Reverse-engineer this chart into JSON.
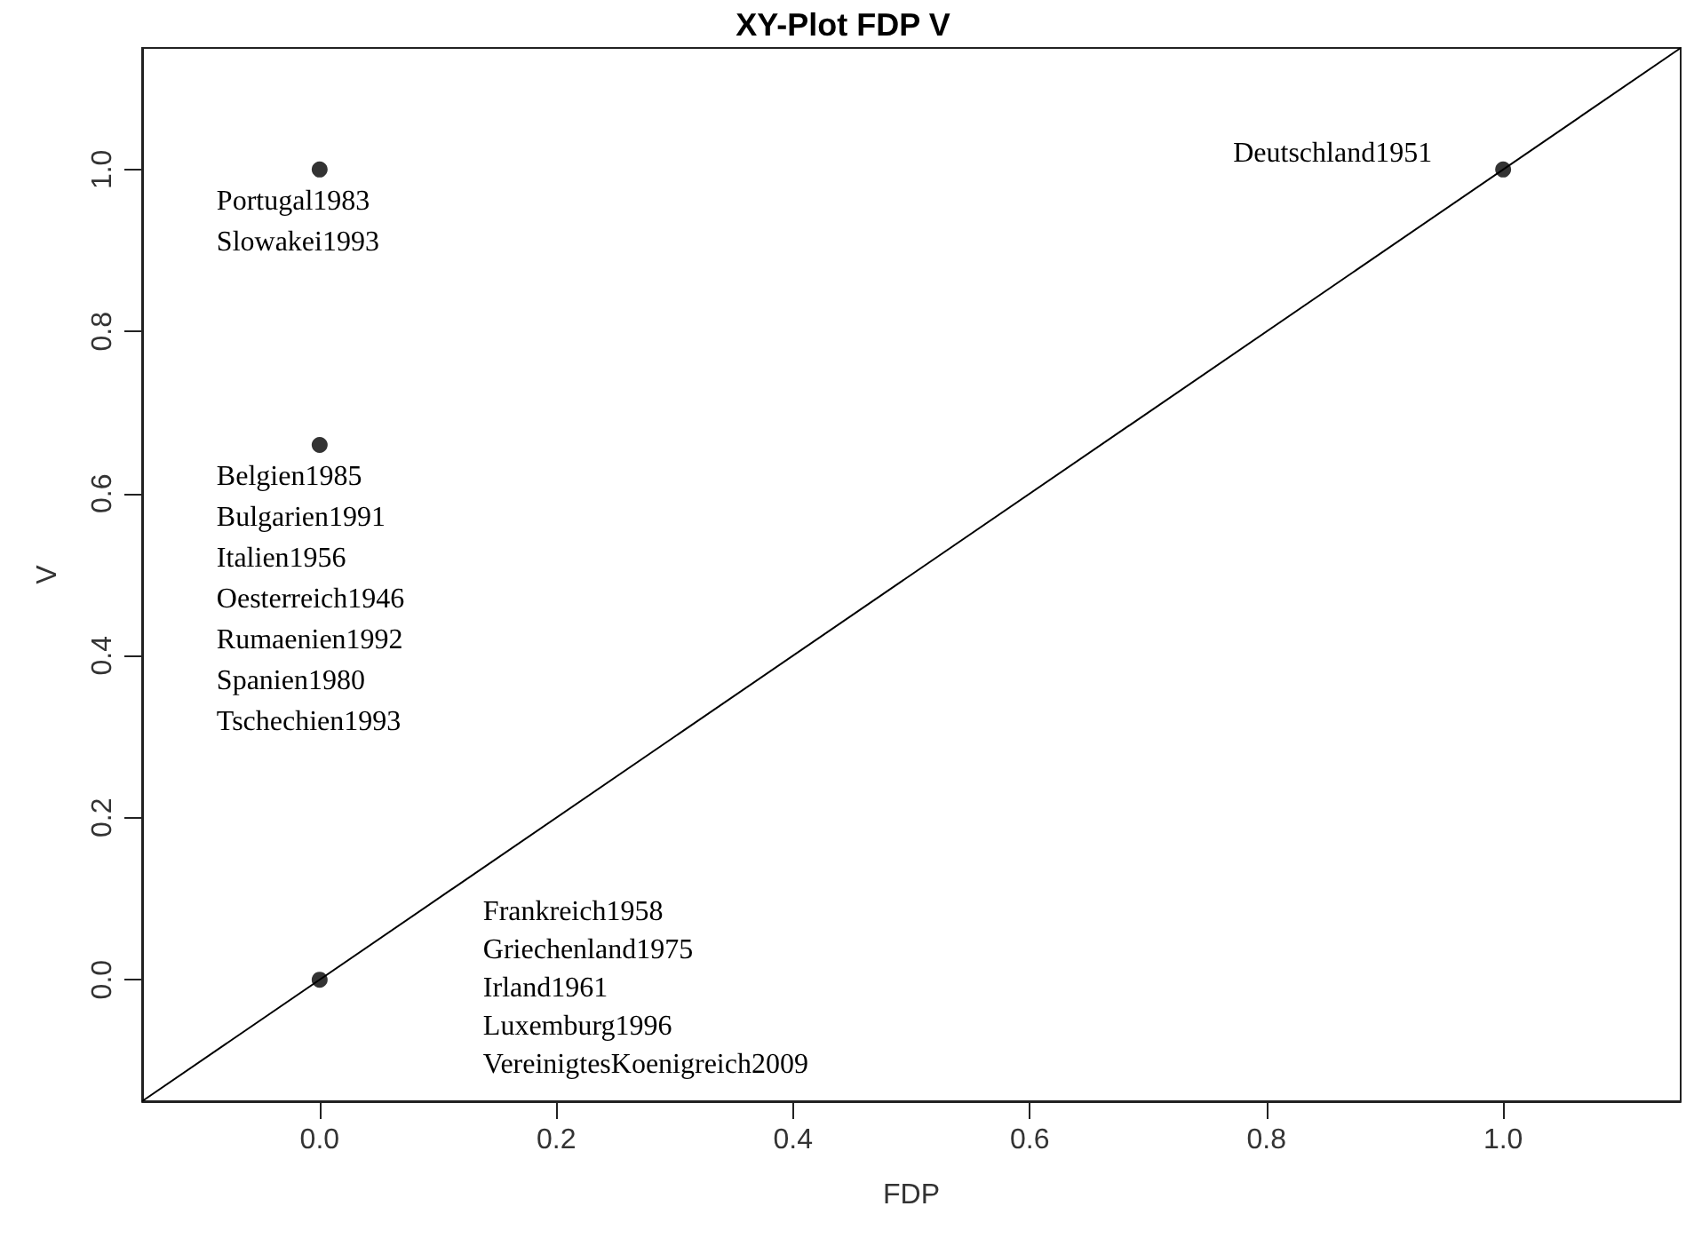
{
  "chart_data": {
    "type": "scatter",
    "title": "XY-Plot FDP V",
    "xlabel": "FDP",
    "ylabel": "V",
    "series": [
      {
        "color": "#000000",
        "marker": "circle",
        "x": [
          0,
          0,
          0,
          1
        ],
        "values": [
          1,
          0.66,
          0,
          1
        ]
      },
      {
        "type": "line",
        "color": "#000000",
        "marker": "none",
        "x": [
          -0.15,
          1.15
        ],
        "values": [
          -0.15,
          1.15
        ]
      }
    ],
    "xlim": [
      -0.15,
      1.15
    ],
    "ylim": [
      -0.15,
      1.15
    ],
    "xticks": [
      {
        "value": 0,
        "label": "0.0"
      },
      0.2,
      0.4,
      0.6,
      0.8,
      {
        "value": 1,
        "label": "1.0"
      }
    ],
    "yticks": [
      {
        "value": 0,
        "label": "0.0"
      },
      0.2,
      0.4,
      0.6,
      0.8,
      {
        "value": 1,
        "label": "1.0"
      }
    ],
    "grid": false,
    "annotations": [
      "Portugal1983",
      "Slowakei1993",
      "Belgien1985",
      "Bulgarien1991",
      "Italien1956",
      "Oesterreich1946",
      "Rumaenien1992",
      "Spanien1980",
      "Tschechien1993",
      "Frankreich1958",
      "Griechenland1975",
      "Irland1961",
      "Luxemburg1996",
      "VereinigtesKoenigreich2009",
      "Deutschland1951"
    ]
  }
}
